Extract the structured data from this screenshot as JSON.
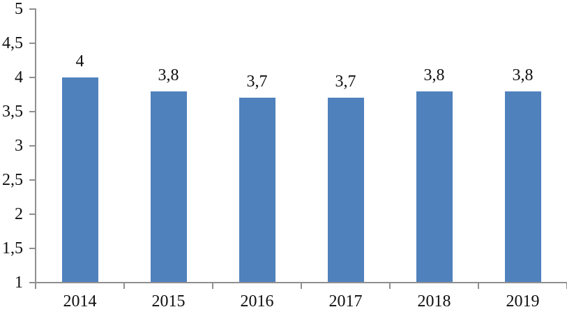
{
  "chart_data": {
    "type": "bar",
    "categories": [
      "2014",
      "2015",
      "2016",
      "2017",
      "2018",
      "2019"
    ],
    "values": [
      4,
      3.8,
      3.7,
      3.7,
      3.8,
      3.8
    ],
    "data_labels": [
      "4",
      "3,8",
      "3,7",
      "3,7",
      "3,8",
      "3,8"
    ],
    "y_ticks": [
      1,
      1.5,
      2,
      2.5,
      3,
      3.5,
      4,
      4.5,
      5
    ],
    "y_tick_labels": [
      "1",
      "1,5",
      "2",
      "2,5",
      "3",
      "3,5",
      "4",
      "4,5",
      "5"
    ],
    "ylim": [
      1,
      5
    ],
    "grid": false,
    "decimal_separator": ",",
    "colors": {
      "bar": "#4f81bd",
      "axis": "#8f8f8f",
      "text": "#0f0f0f",
      "background": "#ffffff"
    }
  }
}
